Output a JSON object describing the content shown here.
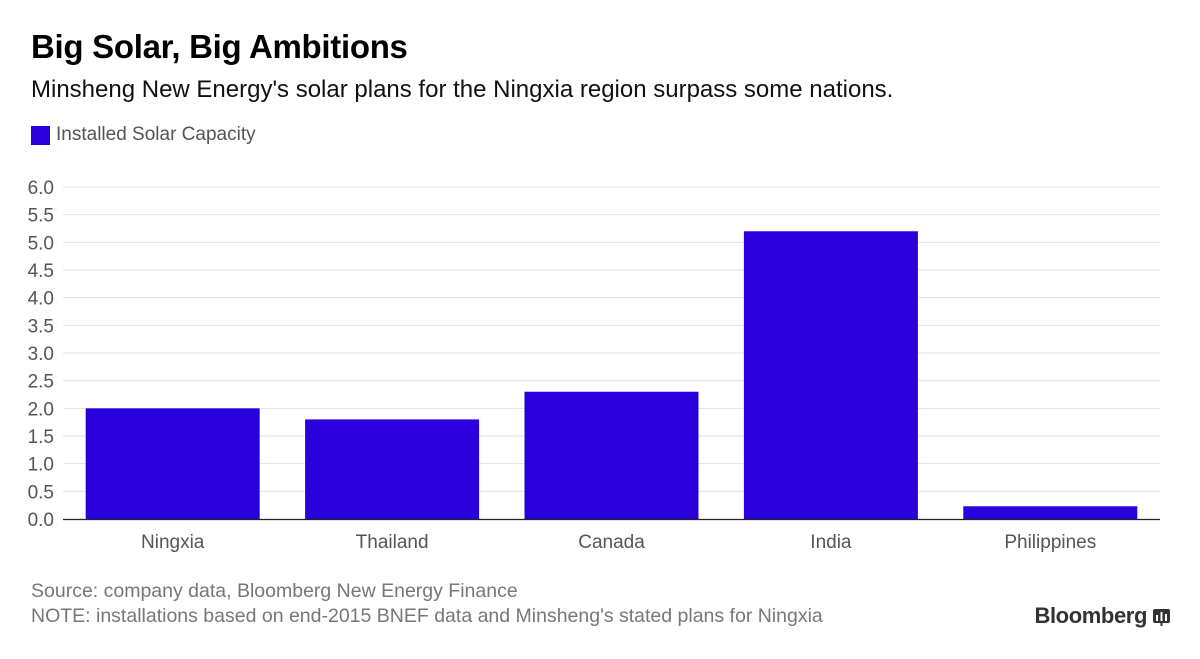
{
  "title": "Big Solar, Big Ambitions",
  "subtitle": "Minsheng New Energy's solar plans for the Ningxia region surpass some nations.",
  "footer": {
    "source": "Source: company data, Bloomberg New Energy Finance",
    "note": "NOTE: installations based on end-2015 BNEF data and Minsheng's stated plans for Ningxia"
  },
  "brand": {
    "name": "Bloomberg",
    "icon": "bloomberg-bars-icon"
  },
  "colors": {
    "bar": "#2a00dd",
    "grid": "#e2e2e2",
    "axis": "#222222",
    "text_muted": "#555555"
  },
  "chart_data": {
    "type": "bar",
    "title": "Big Solar, Big Ambitions",
    "xlabel": "",
    "ylabel": "",
    "categories": [
      "Ningxia",
      "Thailand",
      "Canada",
      "India",
      "Philippines"
    ],
    "series": [
      {
        "name": "Installed Solar Capacity",
        "values": [
          2.0,
          1.8,
          2.3,
          5.2,
          0.23
        ]
      }
    ],
    "ylim": [
      0,
      6
    ],
    "yticks": [
      "0.0",
      "0.5",
      "1.0",
      "1.5",
      "2.0",
      "2.5",
      "3.0",
      "3.5",
      "4.0",
      "4.5",
      "5.0",
      "5.5",
      "6.0"
    ],
    "grid": true,
    "legend": "top-left"
  }
}
